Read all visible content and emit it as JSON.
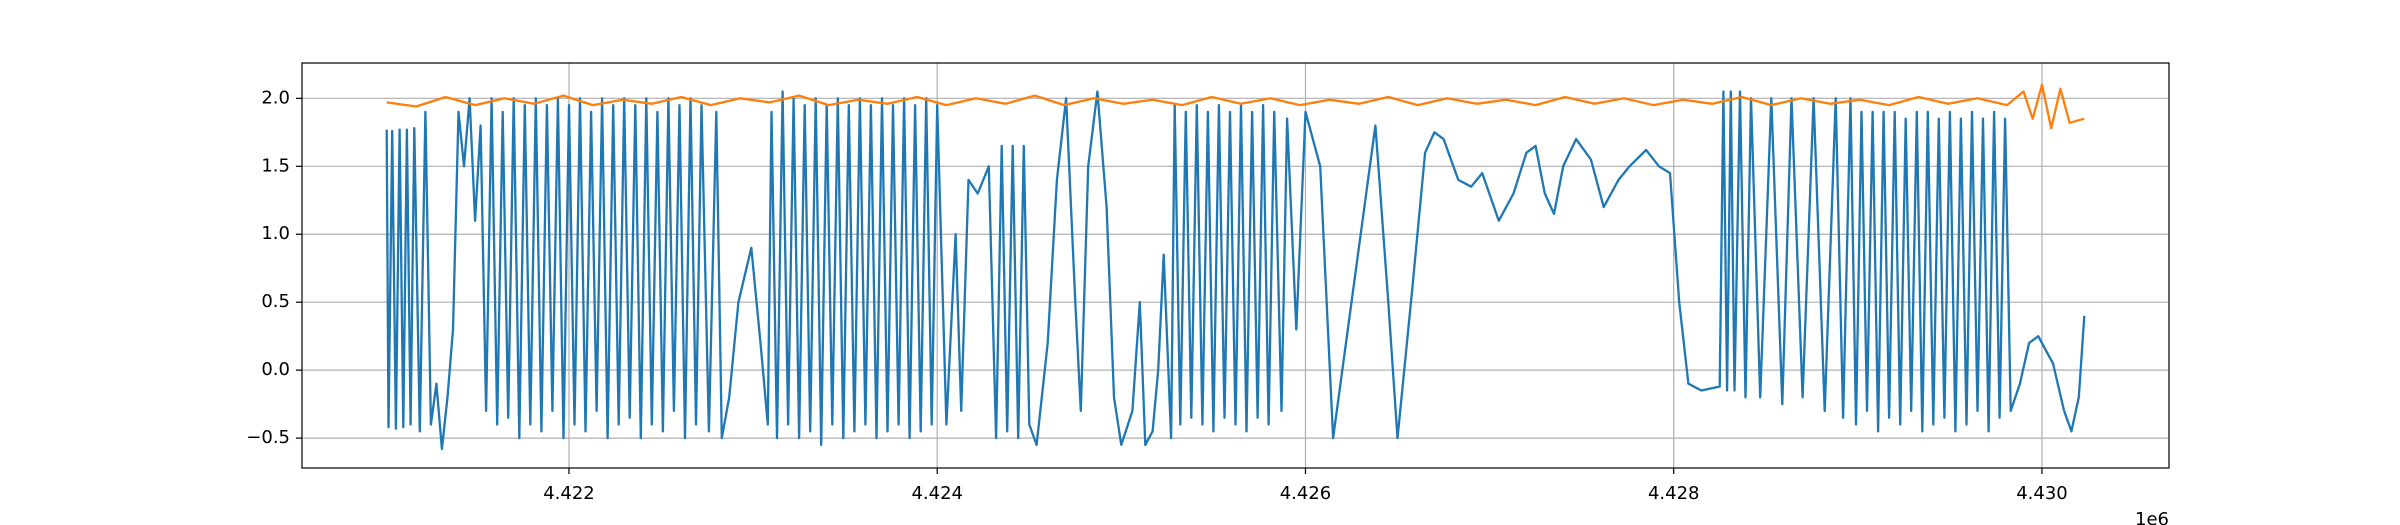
{
  "chart_data": {
    "type": "line",
    "x_offset_label": "1e6",
    "xlim": [
      4420550,
      4430690
    ],
    "ylim": [
      -0.72,
      2.26
    ],
    "xticks": [
      {
        "value": 4422000,
        "label": "4.422"
      },
      {
        "value": 4424000,
        "label": "4.424"
      },
      {
        "value": 4426000,
        "label": "4.426"
      },
      {
        "value": 4428000,
        "label": "4.428"
      },
      {
        "value": 4430000,
        "label": "4.430"
      }
    ],
    "yticks": [
      {
        "value": -0.5,
        "label": "−0.5"
      },
      {
        "value": 0,
        "label": "0.0"
      },
      0.5,
      {
        "value": 1,
        "label": "1.0"
      },
      1.5,
      {
        "value": 2,
        "label": "2.0"
      }
    ],
    "grid": true,
    "series": [
      {
        "color": "#1f77b4",
        "x": [
          4421010,
          4421020,
          4421040,
          4421060,
          4421080,
          4421100,
          4421120,
          4421140,
          4421160,
          4421190,
          4421220,
          4421250,
          4421280,
          4421310,
          4421340,
          4421370,
          4421400,
          4421430,
          4421460,
          4421490,
          4421520,
          4421550,
          4421580,
          4421610,
          4421640,
          4421670,
          4421700,
          4421730,
          4421760,
          4421790,
          4421820,
          4421850,
          4421880,
          4421910,
          4421940,
          4421970,
          4422000,
          4422030,
          4422060,
          4422090,
          4422120,
          4422150,
          4422180,
          4422210,
          4422240,
          4422270,
          4422300,
          4422330,
          4422360,
          4422390,
          4422420,
          4422450,
          4422480,
          4422510,
          4422540,
          4422570,
          4422600,
          4422630,
          4422660,
          4422690,
          4422720,
          4422760,
          4422800,
          4422830,
          4422870,
          4422920,
          4422990,
          4423040,
          4423080,
          4423100,
          4423130,
          4423160,
          4423190,
          4423220,
          4423250,
          4423280,
          4423310,
          4423340,
          4423370,
          4423400,
          4423430,
          4423460,
          4423490,
          4423520,
          4423550,
          4423580,
          4423610,
          4423640,
          4423670,
          4423700,
          4423730,
          4423760,
          4423790,
          4423820,
          4423850,
          4423880,
          4423910,
          4423940,
          4423970,
          4424000,
          4424050,
          4424100,
          4424130,
          4424170,
          4424220,
          4424280,
          4424320,
          4424350,
          4424380,
          4424410,
          4424440,
          4424470,
          4424500,
          4424540,
          4424600,
          4424650,
          4424700,
          4424750,
          4424780,
          4424820,
          4424870,
          4424920,
          4424960,
          4425000,
          4425060,
          4425100,
          4425130,
          4425170,
          4425200,
          4425230,
          4425270,
          4425290,
          4425320,
          4425350,
          4425380,
          4425410,
          4425440,
          4425470,
          4425500,
          4425530,
          4425560,
          4425590,
          4425620,
          4425650,
          4425680,
          4425710,
          4425740,
          4425770,
          4425800,
          4425830,
          4425870,
          4425900,
          4425950,
          4426000,
          4426080,
          4426150,
          4426250,
          4426380,
          4426450,
          4426500,
          4426580,
          4426650,
          4426700,
          4426750,
          4426830,
          4426900,
          4426960,
          4427050,
          4427130,
          4427200,
          4427250,
          4427300,
          4427350,
          4427400,
          4427470,
          4427550,
          4427620,
          4427700,
          4427760,
          4427850,
          4427920,
          4427980,
          4428030,
          4428080,
          4428150,
          4428250,
          4428270,
          4428290,
          4428310,
          4428330,
          4428360,
          4428390,
          4428420,
          4428470,
          4428530,
          4428590,
          4428640,
          4428700,
          4428760,
          4428820,
          4428880,
          4428920,
          4428960,
          4428990,
          4429020,
          4429050,
          4429080,
          4429110,
          4429140,
          4429170,
          4429200,
          4429230,
          4429260,
          4429290,
          4429320,
          4429350,
          4429380,
          4429410,
          4429440,
          4429470,
          4429500,
          4429530,
          4429560,
          4429590,
          4429620,
          4429650,
          4429680,
          4429710,
          4429740,
          4429770,
          4429800,
          4429830,
          4429880,
          4429930,
          4429980,
          4430020,
          4430060,
          4430120,
          4430160,
          4430200,
          4430230
        ],
        "values": [
          1.77,
          -0.42,
          1.76,
          -0.43,
          1.77,
          -0.42,
          1.77,
          -0.4,
          1.78,
          -0.45,
          1.9,
          -0.4,
          -0.1,
          -0.58,
          -0.2,
          0.3,
          1.9,
          1.5,
          2.0,
          1.1,
          1.8,
          -0.3,
          2.0,
          -0.4,
          1.9,
          -0.35,
          2.0,
          -0.5,
          1.95,
          -0.4,
          2.0,
          -0.45,
          1.95,
          -0.3,
          2.0,
          -0.5,
          1.95,
          -0.4,
          2.0,
          -0.45,
          1.9,
          -0.3,
          2.0,
          -0.5,
          1.95,
          -0.4,
          2.0,
          -0.35,
          1.95,
          -0.5,
          2.0,
          -0.4,
          1.9,
          -0.45,
          2.0,
          -0.3,
          1.95,
          -0.5,
          2.0,
          -0.4,
          1.95,
          -0.45,
          1.9,
          -0.5,
          -0.2,
          0.5,
          0.9,
          0.2,
          -0.4,
          1.9,
          -0.5,
          2.05,
          -0.4,
          2.0,
          -0.5,
          1.95,
          -0.45,
          2.0,
          -0.55,
          1.95,
          -0.4,
          2.0,
          -0.5,
          1.95,
          -0.45,
          2.0,
          -0.4,
          1.95,
          -0.5,
          2.0,
          -0.45,
          1.95,
          -0.4,
          2.0,
          -0.5,
          1.95,
          -0.45,
          2.0,
          -0.4,
          1.95,
          -0.4,
          1.0,
          -0.3,
          1.4,
          1.3,
          1.5,
          -0.5,
          1.65,
          -0.45,
          1.65,
          -0.5,
          1.65,
          -0.4,
          -0.55,
          0.2,
          1.4,
          2.0,
          0.5,
          -0.3,
          1.5,
          2.05,
          1.2,
          -0.2,
          -0.55,
          -0.3,
          0.5,
          -0.55,
          -0.45,
          0.0,
          0.85,
          -0.5,
          1.95,
          -0.4,
          1.9,
          -0.35,
          1.95,
          -0.4,
          1.9,
          -0.45,
          1.95,
          -0.35,
          1.9,
          -0.4,
          1.95,
          -0.45,
          1.9,
          -0.35,
          1.95,
          -0.4,
          1.9,
          -0.3,
          1.85,
          0.3,
          1.9,
          1.5,
          -0.5,
          0.5,
          1.8,
          0.5,
          -0.5,
          0.6,
          1.6,
          1.75,
          1.7,
          1.4,
          1.35,
          1.45,
          1.1,
          1.3,
          1.6,
          1.65,
          1.3,
          1.15,
          1.5,
          1.7,
          1.55,
          1.2,
          1.4,
          1.5,
          1.62,
          1.5,
          1.45,
          0.5,
          -0.1,
          -0.15,
          -0.12,
          2.05,
          -0.15,
          2.05,
          -0.15,
          2.05,
          -0.2,
          2.0,
          -0.2,
          2.0,
          -0.25,
          2.0,
          -0.2,
          2.0,
          -0.3,
          2.0,
          -0.35,
          2.0,
          -0.4,
          1.9,
          -0.3,
          1.9,
          -0.45,
          1.9,
          -0.35,
          1.9,
          -0.4,
          1.85,
          -0.3,
          1.9,
          -0.45,
          1.9,
          -0.4,
          1.85,
          -0.35,
          1.9,
          -0.45,
          1.85,
          -0.4,
          1.9,
          -0.3,
          1.85,
          -0.45,
          1.9,
          -0.35,
          1.85,
          -0.3,
          -0.1,
          0.2,
          0.25,
          0.15,
          0.05,
          -0.3,
          -0.45,
          -0.2,
          0.4
        ]
      },
      {
        "color": "#ff7f0e",
        "x": [
          4421010,
          4421170,
          4421330,
          4421490,
          4421650,
          4421810,
          4421970,
          4422130,
          4422290,
          4422450,
          4422610,
          4422770,
          4422930,
          4423090,
          4423250,
          4423410,
          4423570,
          4423730,
          4423890,
          4424050,
          4424210,
          4424370,
          4424530,
          4424690,
          4424850,
          4425010,
          4425170,
          4425330,
          4425490,
          4425650,
          4425810,
          4425970,
          4426130,
          4426290,
          4426450,
          4426610,
          4426770,
          4426930,
          4427090,
          4427250,
          4427410,
          4427570,
          4427730,
          4427890,
          4428050,
          4428210,
          4428370,
          4428530,
          4428690,
          4428850,
          4429010,
          4429170,
          4429330,
          4429490,
          4429650,
          4429810,
          4429900,
          4429950,
          4430000,
          4430050,
          4430100,
          4430150,
          4430230
        ],
        "values": [
          1.97,
          1.94,
          2.01,
          1.95,
          2.0,
          1.96,
          2.02,
          1.95,
          1.99,
          1.96,
          2.01,
          1.95,
          2.0,
          1.97,
          2.02,
          1.95,
          1.99,
          1.96,
          2.01,
          1.95,
          2.0,
          1.96,
          2.02,
          1.95,
          2.0,
          1.96,
          1.99,
          1.95,
          2.01,
          1.96,
          2.0,
          1.95,
          1.99,
          1.96,
          2.01,
          1.95,
          2.0,
          1.96,
          1.99,
          1.95,
          2.01,
          1.96,
          2.0,
          1.95,
          1.99,
          1.96,
          2.01,
          1.95,
          2.0,
          1.96,
          1.99,
          1.95,
          2.01,
          1.96,
          2.0,
          1.95,
          2.05,
          1.85,
          2.1,
          1.78,
          2.07,
          1.82,
          1.85
        ]
      }
    ]
  }
}
